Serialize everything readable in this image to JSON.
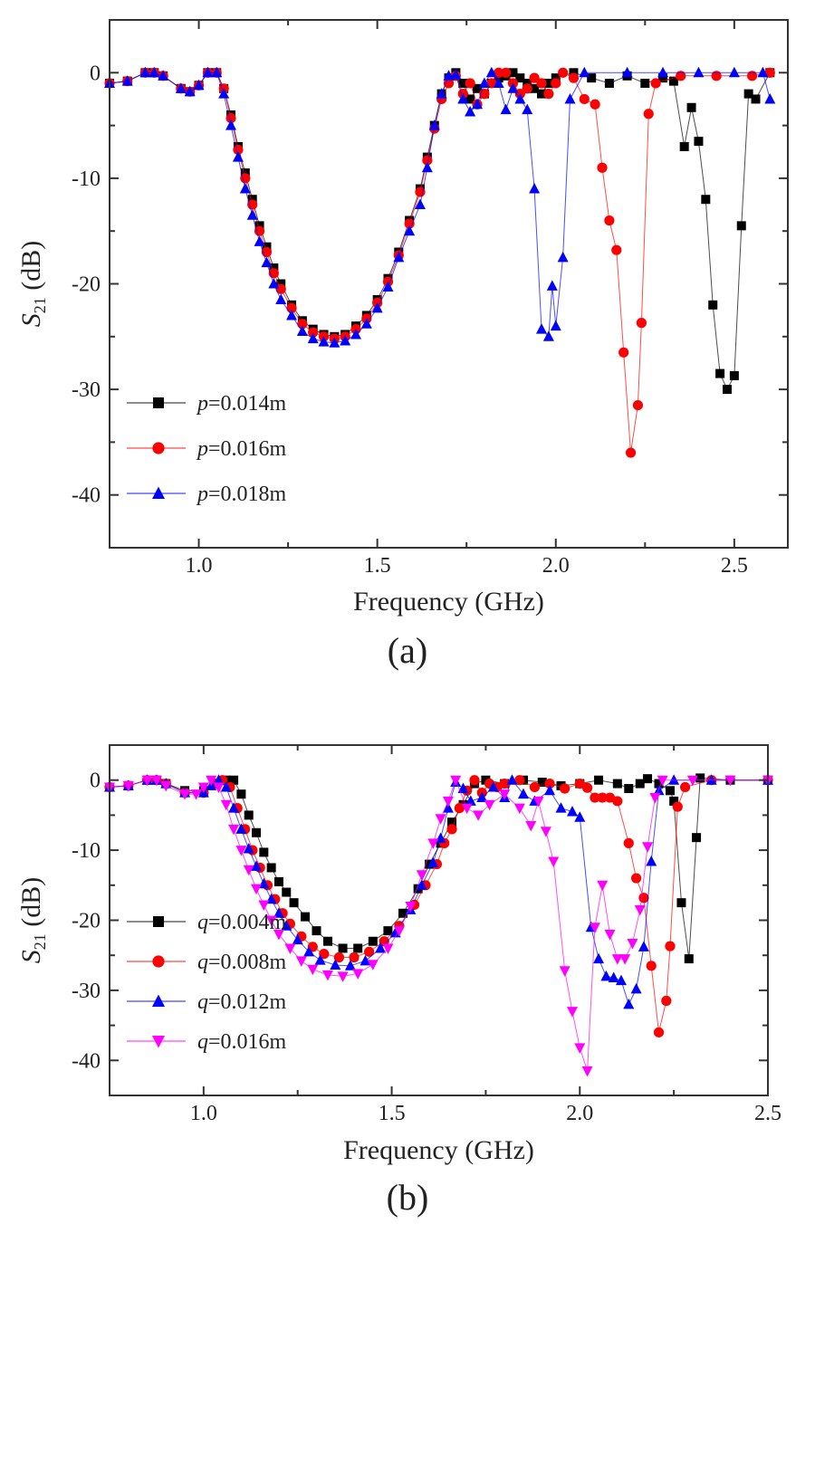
{
  "chart_data": [
    {
      "type": "line",
      "panel_label": "(a)",
      "xlabel": "Frequency (GHz)",
      "ylabel_main": "S",
      "ylabel_sub": "21",
      "ylabel_unit": " (dB)",
      "xlim": [
        0.75,
        2.65
      ],
      "ylim": [
        -45,
        5
      ],
      "xticks": [
        1.0,
        1.5,
        2.0,
        2.5
      ],
      "xtick_labels": [
        "1.0",
        "1.5",
        "2.0",
        "2.5"
      ],
      "yticks": [
        0,
        -10,
        -20,
        -30,
        -40
      ],
      "ytick_labels": [
        "0",
        "-10",
        "-20",
        "-30",
        "-40"
      ],
      "legend_position": "bottom-left",
      "series": [
        {
          "name": "p=0.014m",
          "var": "p",
          "value": "=0.014m",
          "color": "#000000",
          "marker": "square",
          "x": [
            0.75,
            0.8,
            0.85,
            0.875,
            0.9,
            0.95,
            0.975,
            1.0,
            1.025,
            1.05,
            1.07,
            1.09,
            1.11,
            1.13,
            1.15,
            1.17,
            1.19,
            1.21,
            1.23,
            1.26,
            1.29,
            1.32,
            1.35,
            1.38,
            1.41,
            1.44,
            1.47,
            1.5,
            1.53,
            1.56,
            1.59,
            1.62,
            1.64,
            1.66,
            1.68,
            1.7,
            1.72,
            1.74,
            1.76,
            1.78,
            1.8,
            1.82,
            1.84,
            1.86,
            1.88,
            1.9,
            1.92,
            1.94,
            1.96,
            1.98,
            2.0,
            2.05,
            2.1,
            2.15,
            2.2,
            2.25,
            2.3,
            2.33,
            2.36,
            2.38,
            2.4,
            2.42,
            2.44,
            2.46,
            2.48,
            2.5,
            2.52,
            2.54,
            2.56,
            2.6
          ],
          "y": [
            -1,
            -0.8,
            0,
            0,
            -0.3,
            -1.5,
            -1.8,
            -1.2,
            0,
            0,
            -1.5,
            -4,
            -7,
            -9.5,
            -12,
            -14.5,
            -16.5,
            -18.5,
            -20,
            -22,
            -23.5,
            -24.3,
            -24.8,
            -25,
            -24.8,
            -24,
            -23,
            -21.5,
            -19.5,
            -17,
            -14,
            -11,
            -8,
            -5,
            -2,
            -0.5,
            0,
            -1,
            -2.5,
            -1.5,
            -2,
            -1,
            -0.5,
            -0.3,
            0,
            -0.5,
            -1,
            -1.5,
            -2,
            -1,
            -0.5,
            0,
            -0.5,
            -1,
            -0.3,
            -1,
            -0.5,
            -0.8,
            -7,
            -3.3,
            -6.5,
            -12,
            -22,
            -28.5,
            -30,
            -28.7,
            -14.5,
            -2,
            -2.5,
            0
          ]
        },
        {
          "name": "p=0.016m",
          "var": "p",
          "value": "=0.016m",
          "color": "#ff0000",
          "marker": "circle",
          "x": [
            0.75,
            0.8,
            0.85,
            0.875,
            0.9,
            0.95,
            0.975,
            1.0,
            1.025,
            1.05,
            1.07,
            1.09,
            1.11,
            1.13,
            1.15,
            1.17,
            1.19,
            1.21,
            1.23,
            1.26,
            1.29,
            1.32,
            1.35,
            1.38,
            1.41,
            1.44,
            1.47,
            1.5,
            1.53,
            1.56,
            1.59,
            1.62,
            1.64,
            1.66,
            1.68,
            1.7,
            1.72,
            1.74,
            1.76,
            1.78,
            1.8,
            1.82,
            1.84,
            1.86,
            1.88,
            1.9,
            1.92,
            1.94,
            1.96,
            1.98,
            2.0,
            2.02,
            2.05,
            2.08,
            2.11,
            2.13,
            2.15,
            2.17,
            2.19,
            2.21,
            2.23,
            2.24,
            2.26,
            2.28,
            2.35,
            2.45,
            2.55,
            2.6
          ],
          "y": [
            -1,
            -0.8,
            0,
            0,
            -0.3,
            -1.5,
            -1.8,
            -1.2,
            0,
            0,
            -1.5,
            -4.3,
            -7.3,
            -10,
            -12.5,
            -15,
            -17,
            -19,
            -20.5,
            -22.3,
            -23.8,
            -24.6,
            -25,
            -25.2,
            -25,
            -24.3,
            -23.3,
            -21.8,
            -19.8,
            -17.3,
            -14.3,
            -11.3,
            -8.3,
            -5.3,
            -2.5,
            -1,
            -0.3,
            -2,
            -1,
            -3,
            -2,
            -1,
            0,
            0,
            -1,
            -2,
            -1.5,
            -0.5,
            -1,
            -2,
            -1,
            0,
            -0.5,
            -2.5,
            -3,
            -9,
            -14,
            -16.8,
            -26.5,
            -36,
            -31.5,
            -23.7,
            -3.9,
            -1,
            -0.3,
            -0.3,
            -0.3,
            0
          ]
        },
        {
          "name": "p=0.018m",
          "var": "p",
          "value": "=0.018m",
          "color": "#0000ff",
          "marker": "triangle-up",
          "x": [
            0.75,
            0.8,
            0.85,
            0.875,
            0.9,
            0.95,
            0.975,
            1.0,
            1.025,
            1.05,
            1.07,
            1.09,
            1.11,
            1.13,
            1.15,
            1.17,
            1.19,
            1.21,
            1.23,
            1.26,
            1.29,
            1.32,
            1.35,
            1.38,
            1.41,
            1.44,
            1.47,
            1.5,
            1.53,
            1.56,
            1.59,
            1.62,
            1.64,
            1.66,
            1.68,
            1.7,
            1.72,
            1.74,
            1.76,
            1.78,
            1.8,
            1.82,
            1.84,
            1.86,
            1.88,
            1.9,
            1.92,
            1.94,
            1.96,
            1.98,
            1.99,
            2.0,
            2.02,
            2.04,
            2.08,
            2.2,
            2.3,
            2.4,
            2.5,
            2.58,
            2.6
          ],
          "y": [
            -1,
            -0.8,
            0,
            0,
            -0.3,
            -1.5,
            -1.8,
            -1.2,
            0,
            0,
            -2,
            -5,
            -8,
            -11,
            -13.5,
            -16,
            -18,
            -20,
            -21.5,
            -23,
            -24.5,
            -25.2,
            -25.5,
            -25.6,
            -25.4,
            -24.8,
            -23.8,
            -22.3,
            -20.3,
            -17.5,
            -15,
            -12.5,
            -9,
            -5,
            -2,
            -0.3,
            -0.2,
            -2.5,
            -3.7,
            -3,
            -1,
            0,
            -1,
            -3.5,
            -1.5,
            -2.5,
            -3.5,
            -11,
            -24.3,
            -25,
            -20.2,
            -24,
            -17.5,
            -2.5,
            0,
            0,
            0,
            0,
            0,
            0,
            -2.5
          ]
        }
      ]
    },
    {
      "type": "line",
      "panel_label": "(b)",
      "xlabel": "Frequency (GHz)",
      "ylabel_main": "S",
      "ylabel_sub": "21",
      "ylabel_unit": " (dB)",
      "xlim": [
        0.75,
        2.5
      ],
      "ylim": [
        -45,
        5
      ],
      "xticks": [
        1.0,
        1.5,
        2.0,
        2.5
      ],
      "xtick_labels": [
        "1.0",
        "1.5",
        "2.0",
        "2.5"
      ],
      "yticks": [
        0,
        -10,
        -20,
        -30,
        -40
      ],
      "ytick_labels": [
        "0",
        "-10",
        "-20",
        "-30",
        "-40"
      ],
      "legend_position": "bottom-left",
      "series": [
        {
          "name": "q=0.004m",
          "var": "q",
          "value": "=0.004m",
          "color": "#000000",
          "marker": "square",
          "x": [
            0.75,
            0.8,
            0.85,
            0.875,
            0.9,
            0.95,
            1.0,
            1.03,
            1.06,
            1.08,
            1.1,
            1.12,
            1.14,
            1.16,
            1.18,
            1.2,
            1.22,
            1.24,
            1.27,
            1.3,
            1.33,
            1.37,
            1.41,
            1.45,
            1.49,
            1.53,
            1.57,
            1.6,
            1.63,
            1.66,
            1.69,
            1.72,
            1.75,
            1.8,
            1.85,
            1.9,
            1.95,
            2.0,
            2.05,
            2.1,
            2.13,
            2.16,
            2.18,
            2.21,
            2.24,
            2.25,
            2.27,
            2.29,
            2.31,
            2.32,
            2.4,
            2.5
          ],
          "y": [
            -1,
            -0.8,
            0,
            0,
            -0.5,
            -1.5,
            -1.5,
            -0.5,
            0,
            0,
            -2,
            -5,
            -7.5,
            -10.3,
            -12.5,
            -14.5,
            -16,
            -17.5,
            -19.5,
            -21.5,
            -23,
            -24,
            -24,
            -23,
            -21.5,
            -19,
            -15.5,
            -12,
            -9,
            -6,
            -3.5,
            -0.5,
            0,
            -0.5,
            0,
            -0.3,
            -0.8,
            -0.5,
            0,
            -0.5,
            -1.2,
            -0.5,
            0.2,
            -0.5,
            -1.5,
            -3,
            -17.5,
            -25.5,
            -8.2,
            0.3,
            0,
            0
          ]
        },
        {
          "name": "q=0.008m",
          "var": "q",
          "value": "=0.008m",
          "color": "#ff0000",
          "marker": "circle",
          "x": [
            0.75,
            0.8,
            0.85,
            0.875,
            0.9,
            0.95,
            1.0,
            1.03,
            1.05,
            1.07,
            1.09,
            1.11,
            1.13,
            1.15,
            1.17,
            1.19,
            1.21,
            1.23,
            1.26,
            1.29,
            1.32,
            1.36,
            1.4,
            1.44,
            1.48,
            1.52,
            1.56,
            1.59,
            1.62,
            1.64,
            1.66,
            1.68,
            1.7,
            1.72,
            1.74,
            1.76,
            1.78,
            1.8,
            1.84,
            1.88,
            1.92,
            1.96,
            2.0,
            2.02,
            2.04,
            2.06,
            2.08,
            2.1,
            2.13,
            2.15,
            2.17,
            2.19,
            2.21,
            2.23,
            2.24,
            2.26,
            2.28,
            2.35,
            2.5
          ],
          "y": [
            -1,
            -0.8,
            0,
            0,
            -0.5,
            -1.8,
            -1.8,
            -0.5,
            0,
            -1,
            -4,
            -7,
            -10,
            -12.5,
            -15,
            -17,
            -19,
            -20.5,
            -22.3,
            -23.8,
            -24.8,
            -25.3,
            -25.3,
            -24.5,
            -23,
            -20.8,
            -17.8,
            -15,
            -12,
            -9,
            -7,
            -4,
            -1.5,
            0,
            -1.8,
            -0.5,
            -1,
            -0.5,
            0,
            -1,
            -0.5,
            -1.2,
            -0.5,
            -1.1,
            -2.5,
            -2.5,
            -2.5,
            -3,
            -9,
            -14,
            -16.8,
            -26.5,
            -36,
            -31.5,
            -23.7,
            -3.8,
            -1,
            0,
            0
          ]
        },
        {
          "name": "q=0.012m",
          "var": "q",
          "value": "=0.012m",
          "color": "#0000ff",
          "marker": "triangle-up",
          "x": [
            0.75,
            0.8,
            0.85,
            0.875,
            0.9,
            0.95,
            1.0,
            1.02,
            1.04,
            1.06,
            1.08,
            1.1,
            1.12,
            1.14,
            1.16,
            1.18,
            1.2,
            1.22,
            1.25,
            1.28,
            1.31,
            1.35,
            1.39,
            1.43,
            1.47,
            1.51,
            1.55,
            1.58,
            1.61,
            1.63,
            1.65,
            1.67,
            1.69,
            1.71,
            1.74,
            1.77,
            1.8,
            1.82,
            1.85,
            1.88,
            1.92,
            1.95,
            1.98,
            2.0,
            2.03,
            2.05,
            2.07,
            2.09,
            2.11,
            2.13,
            2.15,
            2.17,
            2.19,
            2.21,
            2.25,
            2.35,
            2.5
          ],
          "y": [
            -1,
            -0.8,
            0,
            0,
            -0.5,
            -1.8,
            -1.8,
            -0.8,
            0,
            -1,
            -4,
            -7,
            -9.8,
            -12.3,
            -14.8,
            -17,
            -19,
            -20.8,
            -22.8,
            -24.5,
            -25.7,
            -26.4,
            -26.5,
            -25.8,
            -24,
            -21.8,
            -18.5,
            -15,
            -11.8,
            -8.3,
            -4,
            -0.3,
            -1.2,
            -3,
            -2.5,
            -1,
            -2.5,
            0,
            -2,
            -3,
            -1.5,
            -4,
            -4.5,
            -5.3,
            -21,
            -25.5,
            -28,
            -28.2,
            -28.6,
            -32,
            -29.8,
            -23.8,
            -11.6,
            -1.5,
            0,
            0,
            0
          ]
        },
        {
          "name": "q=0.016m",
          "var": "q",
          "value": "=0.016m",
          "color": "#ff00ff",
          "marker": "triangle-down",
          "x": [
            0.75,
            0.8,
            0.85,
            0.875,
            0.9,
            0.95,
            0.98,
            1.0,
            1.02,
            1.04,
            1.06,
            1.08,
            1.1,
            1.12,
            1.14,
            1.16,
            1.18,
            1.2,
            1.23,
            1.26,
            1.29,
            1.33,
            1.37,
            1.41,
            1.45,
            1.49,
            1.52,
            1.55,
            1.58,
            1.61,
            1.63,
            1.65,
            1.67,
            1.7,
            1.73,
            1.76,
            1.8,
            1.84,
            1.87,
            1.89,
            1.91,
            1.93,
            1.96,
            1.98,
            2.0,
            2.02,
            2.04,
            2.06,
            2.08,
            2.1,
            2.12,
            2.14,
            2.16,
            2.18,
            2.2,
            2.22,
            2.3,
            2.4,
            2.5
          ],
          "y": [
            -1,
            -0.8,
            0,
            0,
            -0.8,
            -2,
            -2,
            -1,
            0,
            -1,
            -3.5,
            -7,
            -10,
            -12.8,
            -15.5,
            -17.8,
            -20,
            -22,
            -24,
            -25.8,
            -27,
            -27.8,
            -28,
            -27.6,
            -26.3,
            -24,
            -21.5,
            -18,
            -13.5,
            -9,
            -5.5,
            -3,
            0,
            -4,
            -5,
            -3.5,
            -2,
            -4,
            -6.5,
            -3,
            -7.3,
            -11.6,
            -27.2,
            -33,
            -38.2,
            -41.5,
            -21,
            -15,
            -22,
            -25.5,
            -25.5,
            -23.3,
            -18.5,
            -9.5,
            -2.5,
            0,
            0,
            0,
            0
          ]
        }
      ]
    }
  ]
}
